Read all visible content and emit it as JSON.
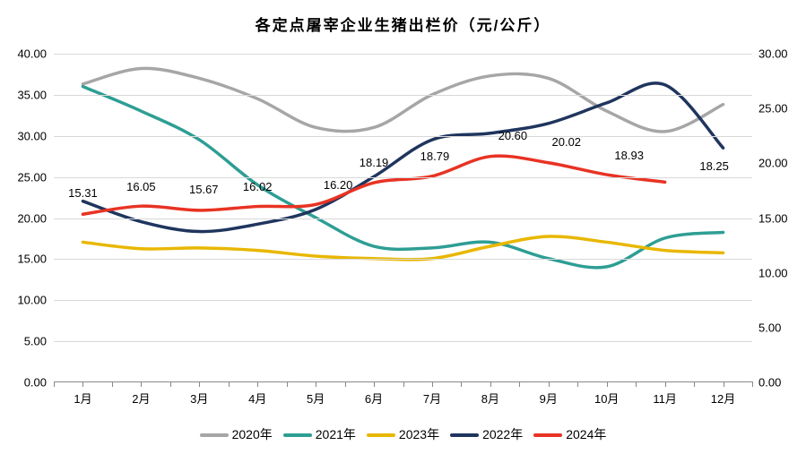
{
  "chart": {
    "type": "line",
    "title": "各定点屠宰企业生猪出栏价（元/公斤）",
    "title_fontsize": 17,
    "categories": [
      "1月",
      "2月",
      "3月",
      "4月",
      "5月",
      "6月",
      "7月",
      "8月",
      "9月",
      "10月",
      "11月",
      "12月"
    ],
    "left_axis": {
      "min": 0,
      "max": 40,
      "ticks": [
        0,
        5,
        10,
        15,
        20,
        25,
        30,
        35,
        40
      ]
    },
    "right_axis": {
      "min": 0,
      "max": 30,
      "ticks": [
        0,
        5,
        10,
        15,
        20,
        25,
        30
      ]
    },
    "grid_color": "#d8d8d8",
    "background_color": "#ffffff",
    "line_width": 3.5,
    "smooth": true,
    "series": [
      {
        "name": "2020年",
        "color": "#a6a6a6",
        "axis": "left",
        "values": [
          36.3,
          38.2,
          37.0,
          34.5,
          31.0,
          31.0,
          35.0,
          37.3,
          37.0,
          33.0,
          30.5,
          33.8
        ]
      },
      {
        "name": "2021年",
        "color": "#2e9e94",
        "axis": "left",
        "values": [
          36.0,
          33.0,
          29.5,
          24.0,
          20.0,
          16.5,
          16.3,
          17.0,
          15.0,
          14.0,
          17.5,
          18.2
        ]
      },
      {
        "name": "2023年",
        "color": "#e8b700",
        "axis": "left",
        "values": [
          17.0,
          16.2,
          16.3,
          16.0,
          15.3,
          15.0,
          15.0,
          16.5,
          17.7,
          17.0,
          16.0,
          15.7
        ]
      },
      {
        "name": "2022年",
        "color": "#1f355e",
        "axis": "left",
        "values": [
          22.0,
          19.5,
          18.3,
          19.2,
          21.0,
          25.0,
          29.5,
          30.3,
          31.5,
          34.0,
          36.2,
          28.5
        ]
      },
      {
        "name": "2024年",
        "color": "#e83323",
        "axis": "right",
        "values": [
          15.31,
          16.05,
          15.67,
          16.02,
          16.2,
          18.19,
          18.79,
          20.6,
          20.02,
          18.93,
          18.25,
          null
        ],
        "show_data_labels": true,
        "label_positions": [
          [
            0,
            -14
          ],
          [
            0,
            -12
          ],
          [
            5,
            -13
          ],
          [
            0,
            -12
          ],
          [
            25,
            -12
          ],
          [
            0,
            -12
          ],
          [
            3,
            -12
          ],
          [
            25,
            -13
          ],
          [
            20,
            -13
          ],
          [
            25,
            -11
          ],
          [
            55,
            -8
          ]
        ]
      }
    ],
    "legend": {
      "position": "bottom",
      "order": [
        "2020年",
        "2021年",
        "2023年",
        "2022年",
        "2024年"
      ]
    }
  }
}
